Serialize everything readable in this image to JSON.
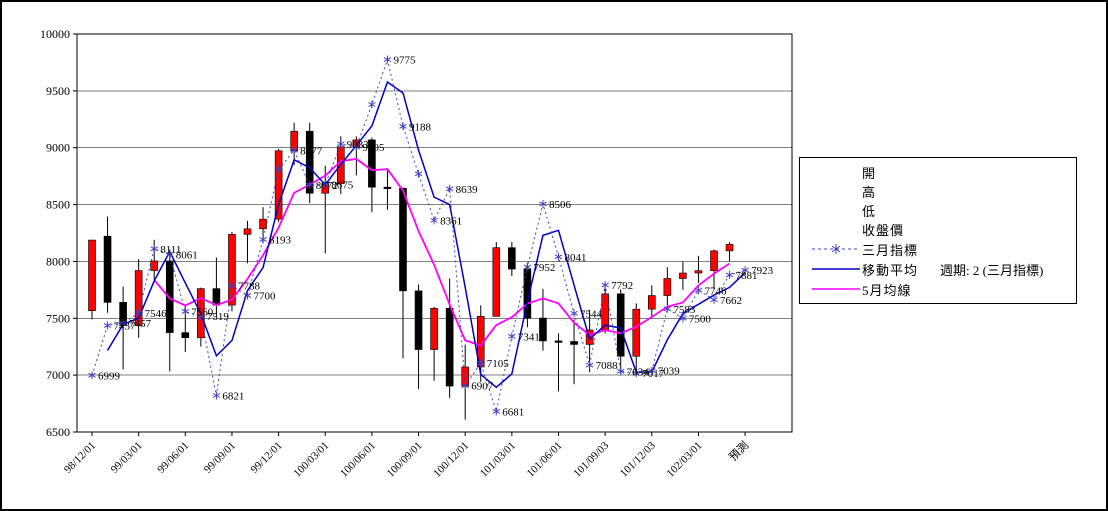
{
  "chart_data": {
    "type": "candlestick",
    "title": "",
    "grid": true,
    "legend_position": "right",
    "y_axis": {
      "min": 6500,
      "max": 10000,
      "step": 500,
      "tick_values": [
        6500,
        7000,
        7500,
        8000,
        8500,
        9000,
        9500,
        10000
      ]
    },
    "x_axis": {
      "slots": 43,
      "ticks_every": 3,
      "tick_labels": [
        "98/12/01",
        "99/03/01",
        "99/06/01",
        "99/09/01",
        "99/12/01",
        "100/03/01",
        "100/06/01",
        "100/09/01",
        "100/12/01",
        "101/03/01",
        "101/06/01",
        "101/09/03",
        "101/12/03",
        "102/03/01",
        "預測"
      ]
    },
    "series": {
      "candles": {
        "names": {
          "open": "開",
          "high": "高",
          "low": "低",
          "close": "收盤價"
        },
        "up_color": "#ff0000",
        "down_color": "#000000",
        "ohlc": [
          [
            7567,
            8190,
            7490,
            8188
          ],
          [
            8222,
            8395,
            7548,
            7640
          ],
          [
            7640,
            7780,
            7050,
            7436
          ],
          [
            7436,
            8020,
            7329,
            7920
          ],
          [
            7920,
            8190,
            7839,
            8004
          ],
          [
            8004,
            8104,
            7032,
            7374
          ],
          [
            7374,
            7620,
            7203,
            7329
          ],
          [
            7329,
            7770,
            7251,
            7761
          ],
          [
            7761,
            8034,
            7515,
            7616
          ],
          [
            7616,
            8260,
            7561,
            8238
          ],
          [
            8238,
            8357,
            7984,
            8287
          ],
          [
            8287,
            8477,
            8165,
            8372
          ],
          [
            8372,
            8990,
            8347,
            8973
          ],
          [
            8973,
            9220,
            8847,
            9145
          ],
          [
            9145,
            9220,
            8513,
            8600
          ],
          [
            8600,
            8842,
            8070,
            8683
          ],
          [
            8683,
            9100,
            8592,
            9008
          ],
          [
            9008,
            9099,
            8757,
            9069
          ],
          [
            9069,
            9089,
            8433,
            8653
          ],
          [
            8653,
            8819,
            8455,
            8644
          ],
          [
            8644,
            8650,
            7148,
            7741
          ],
          [
            7741,
            7798,
            6877,
            7225
          ],
          [
            7225,
            7600,
            6951,
            7588
          ],
          [
            7588,
            7851,
            6800,
            6904
          ],
          [
            6904,
            7268,
            6609,
            7072
          ],
          [
            7072,
            7614,
            6941,
            7517
          ],
          [
            7517,
            8171,
            7517,
            8121
          ],
          [
            8121,
            8171,
            7871,
            7933
          ],
          [
            7933,
            7990,
            7421,
            7502
          ],
          [
            7502,
            7759,
            7215,
            7301
          ],
          [
            7301,
            7367,
            6857,
            7296
          ],
          [
            7296,
            7490,
            6920,
            7270
          ],
          [
            7270,
            7575,
            7026,
            7397
          ],
          [
            7397,
            7780,
            7368,
            7715
          ],
          [
            7715,
            7754,
            7021,
            7166
          ],
          [
            7166,
            7631,
            7007,
            7580
          ],
          [
            7580,
            7789,
            7500,
            7700
          ],
          [
            7700,
            7950,
            7616,
            7850
          ],
          [
            7850,
            8000,
            7750,
            7898
          ],
          [
            7898,
            8049,
            7811,
            7919
          ],
          [
            7919,
            8104,
            7759,
            8093
          ],
          [
            8093,
            8170,
            8000,
            8150
          ]
        ]
      },
      "indicator": {
        "name": "三月指標",
        "color": "#4040c0",
        "marker": "asterisk",
        "line_style": "dotted",
        "values": [
          6999,
          7437,
          7457,
          7546,
          8111,
          8061,
          7560,
          7519,
          6821,
          7788,
          7700,
          8193,
          8810,
          8977,
          8672,
          8675,
          9033,
          9005,
          9380,
          9775,
          9188,
          8770,
          8361,
          8639,
          6907,
          7105,
          6681,
          7341,
          7952,
          8506,
          8041,
          7544,
          7088,
          7792,
          7034,
          7017,
          7039,
          7583,
          7500,
          7746,
          7662,
          7881,
          7923
        ],
        "labels": [
          "6999",
          "7437",
          "7457",
          "7546",
          "8111",
          "8061",
          "7560",
          "7519",
          "6821",
          "7788",
          "7700",
          "8193",
          null,
          "8977",
          "8672",
          "8675",
          "9033",
          "9005",
          null,
          "9775",
          "9188",
          null,
          "8361",
          "8639",
          "6907",
          "7105",
          "6681",
          "7341",
          "7952",
          "8506",
          "8041",
          "7544",
          "7088",
          "7792",
          "7034",
          "7017",
          "7039",
          "7583",
          "7500",
          "7746",
          "7662",
          "7881",
          "7923"
        ]
      },
      "ma2": {
        "name": "移動平均",
        "note": "週期: 2 (三月指標)",
        "color": "#0000c0",
        "period": 2,
        "source": "indicator"
      },
      "ma5": {
        "name": "5月均線",
        "color": "#ff00ff",
        "period": 5,
        "source": "close"
      }
    }
  },
  "legend": {
    "plain_items": [
      "開",
      "高",
      "低",
      "收盤價"
    ],
    "line_items": [
      {
        "label": "三月指標",
        "style": "dashed-star",
        "color": "#4040c0"
      },
      {
        "label": "移動平均",
        "note": "週期: 2 (三月指標)",
        "style": "solid",
        "color": "#0000c0"
      },
      {
        "label": "5月均線",
        "style": "solid",
        "color": "#ff00ff"
      }
    ]
  }
}
